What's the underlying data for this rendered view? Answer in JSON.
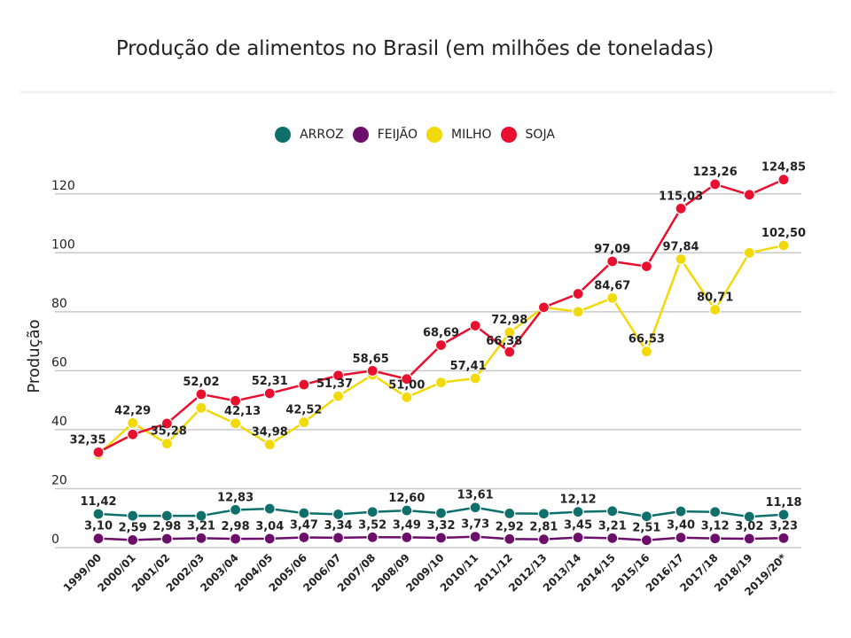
{
  "chart_data": {
    "type": "line",
    "title": "Produção de alimentos no Brasil (em milhões de toneladas)",
    "xlabel": "",
    "ylabel": "Produção",
    "ylim": [
      0,
      124.85
    ],
    "yticks": [
      0,
      20,
      40,
      60,
      80,
      100,
      120
    ],
    "grid": true,
    "legend_position": "top-center",
    "categories": [
      "1999/00",
      "2000/01",
      "2001/02",
      "2002/03",
      "2003/04",
      "2004/05",
      "2005/06",
      "2006/07",
      "2007/08",
      "2008/09",
      "2009/10",
      "2010/11",
      "2011/12",
      "2012/13",
      "2013/14",
      "2014/15",
      "2015/16",
      "2016/17",
      "2017/18",
      "2018/19",
      "2019/20*"
    ],
    "series": [
      {
        "name": "ARROZ",
        "color": "#0f706b",
        "values": [
          11.42,
          10.8,
          10.8,
          10.8,
          12.83,
          13.2,
          11.7,
          11.3,
          12.1,
          12.6,
          11.7,
          13.61,
          11.6,
          11.5,
          12.12,
          12.4,
          10.6,
          12.3,
          12.1,
          10.5,
          11.18
        ],
        "labels": {
          "0": "11,42",
          "4": "12,83",
          "9": "12,60",
          "11": "13,61",
          "14": "12,12",
          "20": "11,18"
        }
      },
      {
        "name": "FEIJÃO",
        "color": "#6b0f6b",
        "values": [
          3.1,
          2.59,
          2.98,
          3.21,
          2.98,
          3.04,
          3.47,
          3.34,
          3.52,
          3.49,
          3.32,
          3.73,
          2.92,
          2.81,
          3.45,
          3.21,
          2.51,
          3.4,
          3.12,
          3.02,
          3.23
        ],
        "labels": {
          "0": "3,10",
          "1": "2,59",
          "2": "2,98",
          "3": "3,21",
          "4": "2,98",
          "5": "3,04",
          "6": "3,47",
          "7": "3,34",
          "8": "3,52",
          "9": "3,49",
          "10": "3,32",
          "11": "3,73",
          "12": "2,92",
          "13": "2,81",
          "14": "3,45",
          "15": "3,21",
          "16": "2,51",
          "17": "3,40",
          "18": "3,12",
          "19": "3,02",
          "20": "3,23"
        }
      },
      {
        "name": "MILHO",
        "color": "#f2d90a",
        "values": [
          31.6,
          42.29,
          35.28,
          47.4,
          42.13,
          34.98,
          42.52,
          51.37,
          58.65,
          51.0,
          56.0,
          57.41,
          72.98,
          81.5,
          80.0,
          84.67,
          66.53,
          97.84,
          80.71,
          100.0,
          102.5
        ],
        "labels": {
          "1": "42,29",
          "2": "35,28",
          "4": "42,13",
          "5": "34,98",
          "6": "42,52",
          "7": "51,37",
          "8": "58,65",
          "9": "51,00",
          "11": "57,41",
          "12": "72,98",
          "15": "84,67",
          "16": "66,53",
          "17": "97,84",
          "18": "80,71",
          "20": "102,50"
        }
      },
      {
        "name": "SOJA",
        "color": "#e8102e",
        "values": [
          32.35,
          38.4,
          42.1,
          52.02,
          49.8,
          52.31,
          55.3,
          58.4,
          60.0,
          57.2,
          68.69,
          75.3,
          66.38,
          81.5,
          86.1,
          97.09,
          95.4,
          115.03,
          123.26,
          119.7,
          124.85
        ],
        "labels": {
          "0": "32,35",
          "3": "52,02",
          "5": "52,31",
          "10": "68,69",
          "12": "66,38",
          "15": "97,09",
          "17": "115,03",
          "18": "123,26",
          "20": "124,85"
        }
      }
    ]
  }
}
